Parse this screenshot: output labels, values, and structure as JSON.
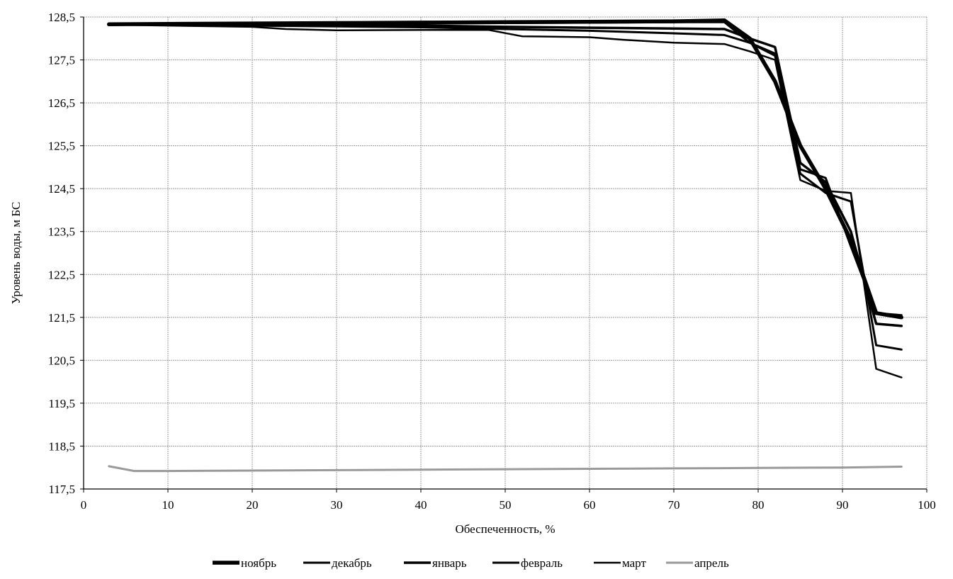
{
  "chart_data": {
    "type": "line",
    "title": "",
    "xlabel": "Обеспеченность, %",
    "ylabel": "Уровень воды, м БС",
    "xlim": [
      0,
      100
    ],
    "ylim": [
      117.5,
      128.5
    ],
    "x_ticks": [
      0,
      10,
      20,
      30,
      40,
      50,
      60,
      70,
      80,
      90,
      100
    ],
    "y_ticks": [
      117.5,
      118.5,
      119.5,
      120.5,
      121.5,
      122.5,
      123.5,
      124.5,
      125.5,
      126.5,
      127.5,
      128.5
    ],
    "x_tick_labels": [
      "0",
      "10",
      "20",
      "30",
      "40",
      "50",
      "60",
      "70",
      "80",
      "90",
      "100"
    ],
    "y_tick_labels": [
      "117,5",
      "118,5",
      "119,5",
      "120,5",
      "121,5",
      "122,5",
      "123,5",
      "124,5",
      "125,5",
      "126,5",
      "127,5",
      "128,5"
    ],
    "grid": true,
    "legend_position": "bottom",
    "series": [
      {
        "name": "ноябрь",
        "color": "#000000",
        "x": [
          3,
          10,
          20,
          30,
          40,
          50,
          60,
          70,
          76,
          79,
          82,
          85,
          88,
          91,
          94,
          97
        ],
        "y": [
          128.33,
          128.34,
          128.35,
          128.36,
          128.37,
          128.38,
          128.39,
          128.4,
          128.42,
          128.0,
          127.0,
          125.5,
          124.5,
          123.3,
          121.6,
          121.5
        ]
      },
      {
        "name": "декабрь",
        "color": "#000000",
        "x": [
          3,
          10,
          20,
          30,
          40,
          50,
          60,
          70,
          76,
          79,
          82,
          85,
          88,
          91,
          94,
          97
        ],
        "y": [
          128.33,
          128.33,
          128.34,
          128.35,
          128.36,
          128.36,
          128.37,
          128.38,
          128.38,
          127.9,
          127.6,
          124.95,
          124.75,
          123.15,
          121.6,
          121.55
        ]
      },
      {
        "name": "январь",
        "color": "#000000",
        "x": [
          3,
          10,
          20,
          30,
          40,
          50,
          60,
          70,
          76,
          79,
          82,
          85,
          88,
          91,
          94,
          97
        ],
        "y": [
          128.33,
          128.33,
          128.32,
          128.31,
          128.3,
          128.27,
          128.25,
          128.23,
          128.22,
          128.0,
          127.8,
          125.1,
          124.65,
          123.5,
          121.35,
          121.3
        ]
      },
      {
        "name": "февраль",
        "color": "#000000",
        "x": [
          3,
          10,
          20,
          30,
          40,
          50,
          60,
          70,
          76,
          79,
          82,
          85,
          88,
          91,
          94,
          97
        ],
        "y": [
          128.33,
          128.32,
          128.3,
          128.28,
          128.26,
          128.22,
          128.18,
          128.12,
          128.08,
          127.9,
          127.65,
          124.85,
          124.4,
          124.2,
          120.85,
          120.75
        ]
      },
      {
        "name": "март",
        "color": "#000000",
        "x": [
          3,
          10,
          20,
          24,
          30,
          40,
          48,
          52,
          60,
          64,
          70,
          76,
          79,
          82,
          85,
          88,
          91,
          94,
          97
        ],
        "y": [
          128.32,
          128.3,
          128.27,
          128.22,
          128.19,
          128.2,
          128.2,
          128.05,
          128.03,
          127.97,
          127.9,
          127.87,
          127.7,
          127.5,
          124.7,
          124.45,
          124.4,
          120.3,
          120.1
        ]
      },
      {
        "name": "апрель",
        "color": "#9a9a9a",
        "x": [
          3,
          6,
          10,
          20,
          30,
          40,
          50,
          60,
          70,
          80,
          90,
          97
        ],
        "y": [
          118.03,
          117.92,
          117.92,
          117.93,
          117.94,
          117.95,
          117.96,
          117.97,
          117.98,
          117.99,
          118.0,
          118.02
        ]
      }
    ]
  }
}
